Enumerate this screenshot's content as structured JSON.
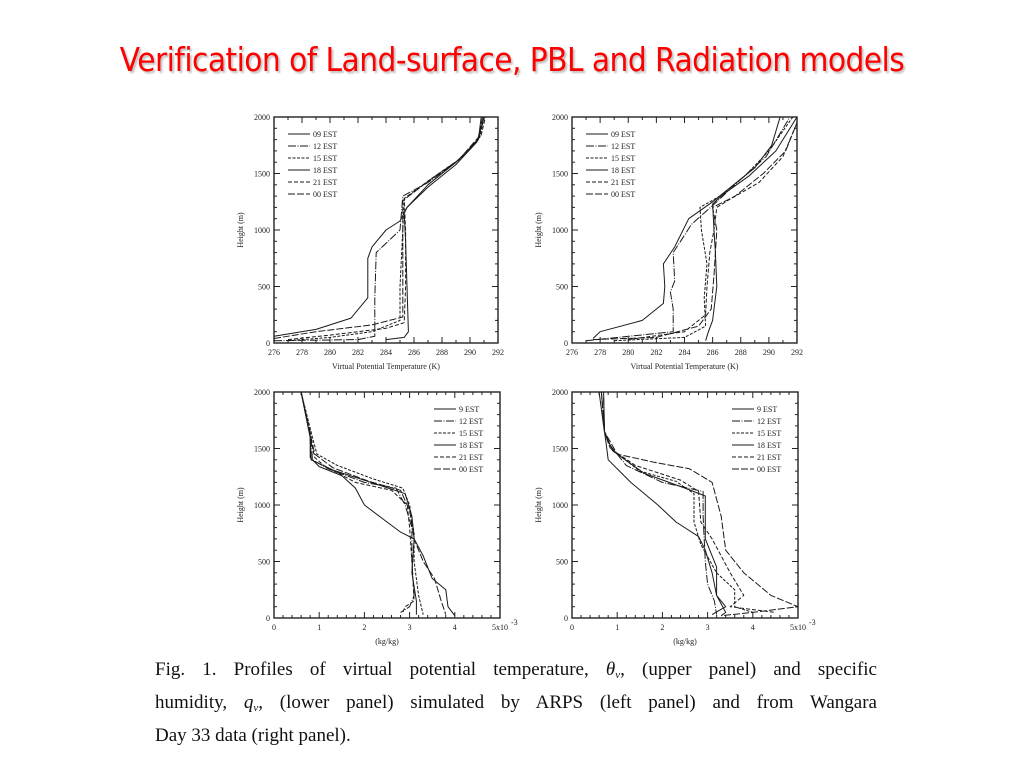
{
  "slide": {
    "title": "Verification of Land-surface, PBL and Radiation models"
  },
  "caption": {
    "line1_a": "Fig. 1. Profiles of virtual potential temperature, ",
    "theta_symbol": "θ",
    "theta_sub": "v",
    "line1_b": ", (upper panel) and specific",
    "line2_a": "humidity, ",
    "q_symbol": "q",
    "q_sub": "v",
    "line2_b": ", (lower panel) simulated by ARPS (left panel) and from Wangara",
    "line3": "Day 33 data (right panel)."
  },
  "chart_data": [
    {
      "type": "line",
      "panel": "upper-left",
      "xlabel": "Virtual Potential Temperature (K)",
      "ylabel": "Height (m)",
      "xlim": [
        276,
        292
      ],
      "ylim": [
        0,
        2000
      ],
      "xticks": [
        "276",
        "278",
        "280",
        "282",
        "284",
        "286",
        "288",
        "290",
        "292"
      ],
      "yticks": [
        "0",
        "500",
        "1000",
        "1500",
        "2000"
      ],
      "legend_position": "top-left",
      "series": [
        {
          "name": "09 EST",
          "x": [
            276,
            279,
            281.5,
            282.7,
            282.7,
            283,
            284,
            285,
            285.5,
            287,
            289,
            290.6,
            290.8
          ],
          "y": [
            60,
            120,
            220,
            400,
            750,
            850,
            1000,
            1080,
            1200,
            1400,
            1600,
            1800,
            2000
          ]
        },
        {
          "name": "12 EST",
          "x": [
            276,
            282,
            283.2,
            283.2,
            283.3,
            285,
            285.1,
            285.2,
            287,
            289,
            290.6,
            291
          ],
          "y": [
            20,
            30,
            60,
            400,
            800,
            1000,
            1150,
            1300,
            1420,
            1600,
            1800,
            2000
          ]
        },
        {
          "name": "15 EST",
          "x": [
            277,
            280,
            283,
            285,
            285,
            285.2,
            285.3,
            287.2,
            289.2,
            290.7,
            291
          ],
          "y": [
            20,
            50,
            100,
            200,
            500,
            1000,
            1270,
            1450,
            1620,
            1820,
            2000
          ]
        },
        {
          "name": "18 EST",
          "x": [
            284,
            285.3,
            285.6,
            285.5,
            285.4,
            285.3,
            285.5,
            287,
            289,
            290.5,
            291
          ],
          "y": [
            30,
            50,
            100,
            500,
            900,
            1150,
            1200,
            1380,
            1580,
            1780,
            2000
          ]
        },
        {
          "name": "21 EST",
          "x": [
            277,
            280,
            284,
            285.3,
            285.4,
            285.4,
            285.3,
            287.3,
            289.4,
            290.8,
            291.1
          ],
          "y": [
            30,
            70,
            130,
            180,
            500,
            1000,
            1280,
            1460,
            1640,
            1840,
            2000
          ]
        },
        {
          "name": "00 EST",
          "x": [
            276,
            279,
            283,
            285.2,
            285.2,
            285.2,
            285.2,
            287.1,
            289.2,
            290.6,
            290.9
          ],
          "y": [
            40,
            100,
            160,
            230,
            600,
            1000,
            1260,
            1440,
            1620,
            1820,
            2000
          ]
        }
      ]
    },
    {
      "type": "line",
      "panel": "upper-right",
      "xlabel": "Virtual Potential Temperature (K)",
      "ylabel": "Height (m)",
      "xlim": [
        276,
        292
      ],
      "ylim": [
        0,
        2000
      ],
      "xticks": [
        "276",
        "278",
        "280",
        "282",
        "284",
        "286",
        "288",
        "290",
        "292"
      ],
      "yticks": [
        "0",
        "500",
        "1000",
        "1500",
        "2000"
      ],
      "legend_position": "top-left",
      "series": [
        {
          "name": "09 EST",
          "x": [
            277.5,
            278,
            281,
            282.5,
            282.6,
            282.5,
            283.3,
            284.3,
            286,
            287,
            289,
            290.2,
            290.8
          ],
          "y": [
            40,
            100,
            200,
            350,
            500,
            700,
            850,
            1100,
            1250,
            1350,
            1550,
            1750,
            2000
          ]
        },
        {
          "name": "12 EST",
          "x": [
            277,
            283.2,
            283.2,
            283.0,
            283.3,
            283.2,
            284.5,
            286.3,
            288,
            289.8,
            291.5
          ],
          "y": [
            20,
            100,
            300,
            450,
            550,
            800,
            1050,
            1250,
            1450,
            1650,
            2000
          ]
        },
        {
          "name": "15 EST",
          "x": [
            279,
            284,
            285.5,
            285.4,
            285.6,
            285.2,
            285.1,
            286.5,
            288.3,
            290,
            291.7
          ],
          "y": [
            20,
            50,
            150,
            400,
            700,
            1000,
            1200,
            1300,
            1480,
            1700,
            2000
          ]
        },
        {
          "name": "18 EST",
          "x": [
            285.5,
            285.7,
            286.0,
            286.3,
            286.2,
            286.1,
            286.0,
            286.8,
            288.6,
            290.5,
            292
          ],
          "y": [
            20,
            100,
            200,
            500,
            800,
            1000,
            1230,
            1320,
            1480,
            1700,
            2000
          ]
        },
        {
          "name": "21 EST",
          "x": [
            280,
            284,
            285.5,
            285.6,
            285.8,
            286.1,
            286.3,
            287.2,
            289.3,
            291,
            292
          ],
          "y": [
            30,
            100,
            250,
            500,
            800,
            1000,
            1200,
            1270,
            1420,
            1650,
            1950
          ]
        },
        {
          "name": "00 EST",
          "x": [
            277.5,
            282,
            285,
            285.9,
            286.1,
            286.3,
            286.0,
            287.6,
            289.6,
            291.2,
            292
          ],
          "y": [
            30,
            50,
            150,
            300,
            600,
            1000,
            1200,
            1300,
            1500,
            1700,
            1950
          ]
        }
      ]
    },
    {
      "type": "line",
      "panel": "lower-left",
      "xlabel": "(kg/kg)",
      "ylabel": "Height (m)",
      "xlim": [
        0,
        5
      ],
      "ylim": [
        0,
        2000
      ],
      "xticks": [
        "0",
        "1",
        "2",
        "3",
        "4",
        "5x10"
      ],
      "x_exponent": "-3",
      "yticks": [
        "0",
        "500",
        "1000",
        "1500",
        "2000"
      ],
      "legend_position": "top-right",
      "series": [
        {
          "name": "9 EST",
          "x": [
            0.6,
            0.8,
            0.8,
            1.0,
            1.5,
            1.8,
            2.0,
            2.4,
            2.8,
            3.1,
            3.3,
            3.5,
            3.8,
            3.85,
            4.0
          ],
          "y": [
            2000,
            1600,
            1420,
            1340,
            1260,
            1150,
            1000,
            880,
            760,
            700,
            550,
            350,
            250,
            100,
            20
          ]
        },
        {
          "name": "12 EST",
          "x": [
            0.6,
            0.82,
            0.85,
            1.2,
            2.0,
            2.7,
            2.9,
            3.05,
            3.05,
            3.1,
            3.0,
            2.8
          ],
          "y": [
            2000,
            1600,
            1400,
            1320,
            1200,
            1150,
            1000,
            800,
            500,
            200,
            100,
            50
          ]
        },
        {
          "name": "15 EST",
          "x": [
            0.6,
            0.85,
            0.95,
            1.4,
            2.2,
            2.85,
            3.0,
            3.1,
            3.1,
            3.2,
            3.3
          ],
          "y": [
            2000,
            1600,
            1450,
            1350,
            1230,
            1150,
            1000,
            750,
            500,
            200,
            30
          ]
        },
        {
          "name": "18 EST",
          "x": [
            0.6,
            0.8,
            0.82,
            1.3,
            2.3,
            2.9,
            3.05,
            3.1,
            3.05,
            3.15,
            3.15
          ],
          "y": [
            2000,
            1600,
            1400,
            1310,
            1180,
            1100,
            900,
            700,
            400,
            150,
            30
          ]
        },
        {
          "name": "21 EST",
          "x": [
            0.6,
            0.8,
            0.9,
            1.1,
            1.8,
            2.6,
            2.95,
            3.0,
            3.05,
            3.1,
            2.9,
            2.85
          ],
          "y": [
            2000,
            1600,
            1420,
            1350,
            1200,
            1130,
            1000,
            800,
            500,
            150,
            100,
            50
          ]
        },
        {
          "name": "00 EST",
          "x": [
            0.6,
            0.82,
            0.9,
            1.3,
            2.1,
            2.8,
            3.0,
            3.1,
            3.3,
            3.55,
            3.7,
            3.8
          ],
          "y": [
            2000,
            1600,
            1450,
            1330,
            1210,
            1130,
            950,
            700,
            500,
            350,
            150,
            30
          ]
        }
      ]
    },
    {
      "type": "line",
      "panel": "lower-right",
      "xlabel": "(kg/kg)",
      "ylabel": "Height (m)",
      "xlim": [
        0,
        5
      ],
      "ylim": [
        0,
        2000
      ],
      "xticks": [
        "0",
        "1",
        "2",
        "3",
        "4",
        "5x10"
      ],
      "x_exponent": "-3",
      "yticks": [
        "0",
        "500",
        "1000",
        "1500",
        "2000"
      ],
      "legend_position": "top-right",
      "series": [
        {
          "name": "9 EST",
          "x": [
            0.6,
            0.7,
            0.75,
            0.8,
            1.3,
            1.9,
            2.3,
            2.8,
            2.95,
            3.1,
            3.2,
            3.4,
            3.3
          ],
          "y": [
            2000,
            1700,
            1560,
            1400,
            1200,
            1000,
            850,
            720,
            600,
            400,
            200,
            50,
            20
          ]
        },
        {
          "name": "12 EST",
          "x": [
            0.7,
            0.72,
            0.8,
            1.2,
            2.0,
            2.9,
            2.9,
            2.95,
            3.0,
            3.15,
            3.2
          ],
          "y": [
            1950,
            1650,
            1550,
            1350,
            1200,
            1120,
            900,
            500,
            300,
            150,
            30
          ]
        },
        {
          "name": "15 EST",
          "x": [
            0.65,
            0.72,
            0.85,
            1.5,
            2.3,
            2.7,
            2.7,
            2.85,
            3.2,
            3.6,
            3.6,
            4.0
          ],
          "y": [
            2000,
            1650,
            1500,
            1300,
            1210,
            1100,
            850,
            650,
            400,
            250,
            100,
            50
          ]
        },
        {
          "name": "18 EST",
          "x": [
            0.7,
            0.72,
            0.9,
            1.6,
            2.5,
            2.95,
            2.95,
            3.2,
            3.2,
            3.4,
            3.1
          ],
          "y": [
            2000,
            1650,
            1480,
            1280,
            1150,
            1080,
            700,
            450,
            200,
            100,
            30
          ]
        },
        {
          "name": "21 EST",
          "x": [
            0.65,
            0.72,
            0.85,
            1.4,
            2.4,
            2.8,
            2.85,
            3.1,
            3.5,
            3.8,
            3.5,
            4.5
          ],
          "y": [
            2000,
            1650,
            1500,
            1350,
            1220,
            1120,
            850,
            700,
            400,
            200,
            100,
            50
          ]
        },
        {
          "name": "00 EST",
          "x": [
            0.65,
            0.72,
            1.0,
            1.8,
            2.6,
            3.1,
            3.3,
            3.4,
            3.8,
            4.4,
            5.0,
            4.0,
            3.3
          ],
          "y": [
            2000,
            1650,
            1450,
            1380,
            1320,
            1200,
            900,
            600,
            400,
            200,
            100,
            50,
            20
          ]
        }
      ]
    }
  ]
}
